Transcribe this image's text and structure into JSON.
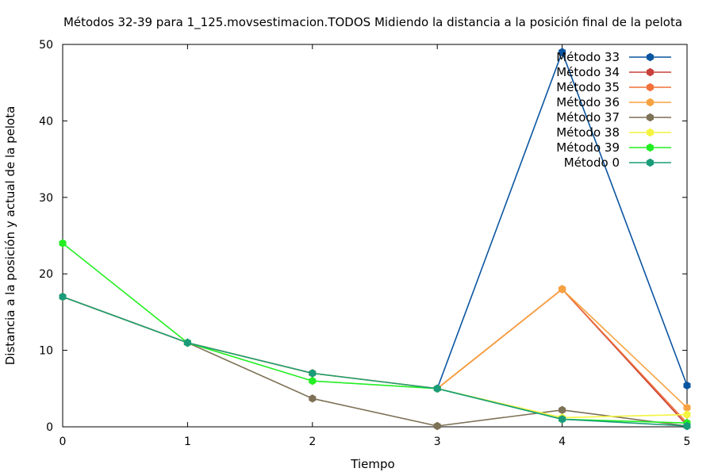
{
  "chart_data": {
    "type": "line",
    "title": "Métodos 32-39 para 1_125.movsestimacion.TODOS Midiendo la distancia a la posición final de la pelota",
    "xlabel": "Tiempo",
    "ylabel": "Distancia a la posición y actual de la pelota",
    "x": [
      0,
      1,
      2,
      3,
      4,
      5
    ],
    "xlim": [
      0,
      5
    ],
    "ylim": [
      0,
      50
    ],
    "xticks": [
      0,
      1,
      2,
      3,
      4,
      5
    ],
    "yticks": [
      0,
      10,
      20,
      30,
      40,
      50
    ],
    "legend_position": "top-right",
    "series": [
      {
        "name": "Método 33",
        "color": "#0a55a0",
        "values": [
          17,
          11,
          7,
          5,
          49,
          5.4
        ]
      },
      {
        "name": "Método 34",
        "color": "#c8413a",
        "values": [
          17,
          11,
          7,
          5,
          18,
          0.2
        ]
      },
      {
        "name": "Método 35",
        "color": "#f0713a",
        "values": [
          17,
          11,
          7,
          5,
          18,
          0.5
        ]
      },
      {
        "name": "Método 36",
        "color": "#f7a240",
        "values": [
          17,
          11,
          7,
          5,
          18,
          2.5
        ]
      },
      {
        "name": "Método 37",
        "color": "#7d7156",
        "values": [
          17,
          11,
          3.7,
          0.1,
          2.2,
          0.1
        ]
      },
      {
        "name": "Método 38",
        "color": "#f4f440",
        "values": [
          17,
          11,
          7,
          5,
          1.2,
          1.6
        ]
      },
      {
        "name": "Método 39",
        "color": "#22ee22",
        "values": [
          24,
          11,
          6,
          5,
          1,
          0.5
        ]
      },
      {
        "name": "Método 0",
        "color": "#1a9c7a",
        "values": [
          17,
          11,
          7,
          5,
          1,
          0.1
        ]
      }
    ]
  }
}
